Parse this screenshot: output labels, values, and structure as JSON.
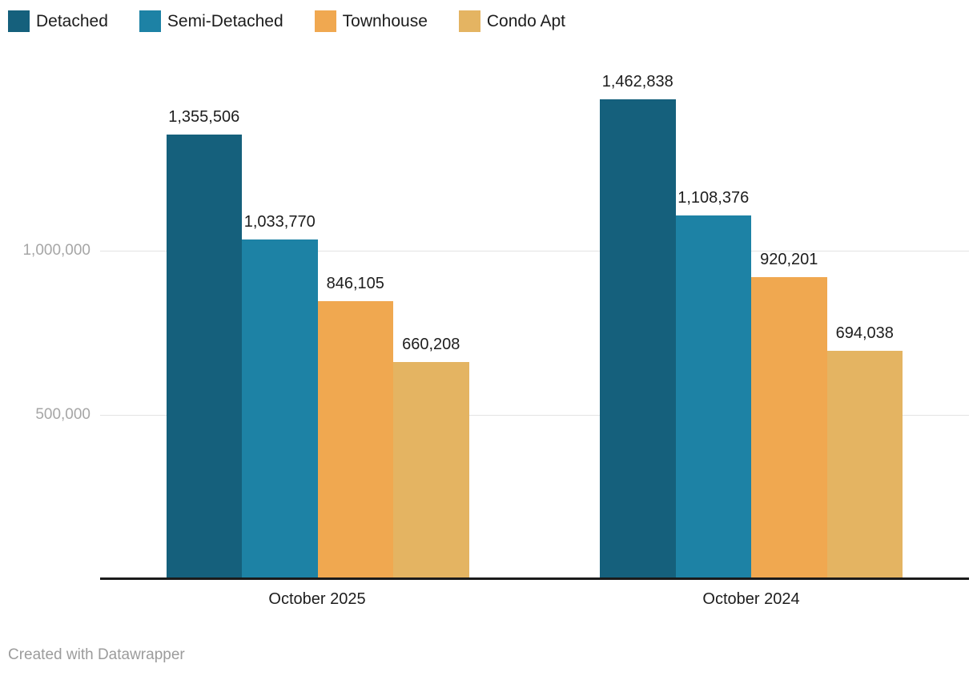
{
  "chart": {
    "footer": "Created with Datawrapper"
  },
  "chart_data": {
    "type": "bar",
    "title": "",
    "xlabel": "",
    "ylabel": "",
    "categories": [
      "October 2025",
      "October 2024"
    ],
    "series": [
      {
        "name": "Detached",
        "color": "#15607c",
        "values": [
          1355506,
          1462838
        ],
        "labels": [
          "1,355,506",
          "1,462,838"
        ]
      },
      {
        "name": "Semi-Detached",
        "color": "#1d82a5",
        "values": [
          1033770,
          1108376
        ],
        "labels": [
          "1,033,770",
          "1,108,376"
        ]
      },
      {
        "name": "Townhouse",
        "color": "#f0a850",
        "values": [
          846105,
          920201
        ],
        "labels": [
          "846,105",
          "920,201"
        ]
      },
      {
        "name": "Condo Apt",
        "color": "#e4b462",
        "values": [
          660208,
          694038
        ],
        "labels": [
          "660,208",
          "694,038"
        ]
      }
    ],
    "y_axis": {
      "ticks": [
        {
          "value": 1000000,
          "label": "1,000,000"
        },
        {
          "value": 500000,
          "label": "500,000"
        }
      ]
    },
    "ylim": [
      0,
      1500000
    ],
    "grid": "horizontal",
    "legend_position": "top-left",
    "attribution": "Created with Datawrapper"
  }
}
